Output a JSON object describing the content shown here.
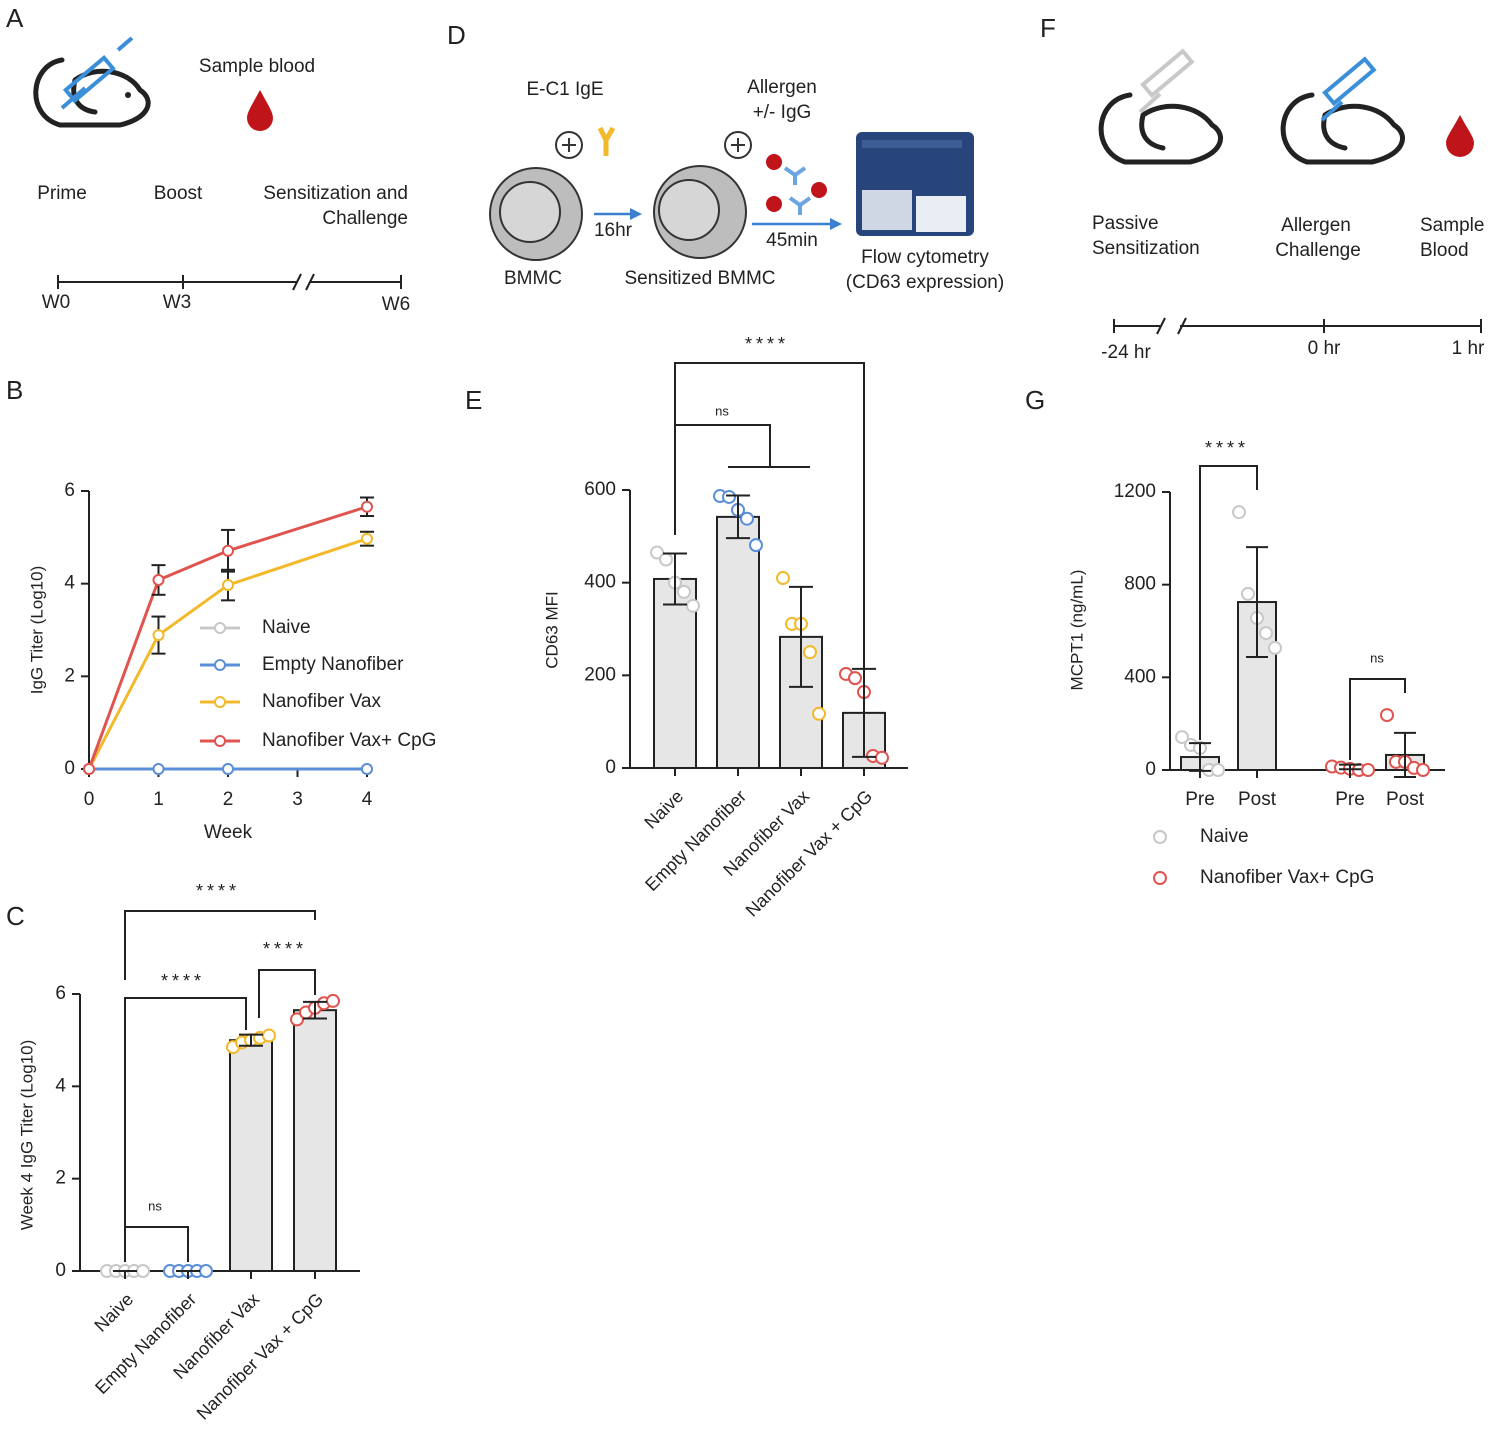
{
  "panels": [
    "A",
    "B",
    "C",
    "D",
    "E",
    "F",
    "G"
  ],
  "diagrams": {
    "A": {
      "labels": [
        "Sample blood",
        "Prime",
        "Boost",
        "Sensitization and",
        "Challenge"
      ],
      "timeline": [
        "W0",
        "W3",
        "W6"
      ]
    },
    "D": {
      "labels": [
        "E-C1 IgE",
        "Allergen",
        "+/- IgG",
        "16hr",
        "45min",
        "BMMC",
        "Sensitized BMMC",
        "Flow cytometry",
        "(CD63 expression)"
      ]
    },
    "F": {
      "labels": [
        "Passive",
        "Sensitization",
        "Allergen",
        "Challenge",
        "Sample",
        "Blood"
      ],
      "timeline": [
        "-24 hr",
        "0 hr",
        "1 hr"
      ]
    }
  },
  "chart_data": [
    {
      "type": "line",
      "xlabel": "Week",
      "ylabel": "IgG Titer (Log10)",
      "x": [
        0,
        1,
        2,
        4
      ],
      "xlim": [
        0,
        4
      ],
      "xticks": [
        0,
        1,
        2,
        3,
        4
      ],
      "ylim": [
        0,
        6
      ],
      "yticks": [
        0,
        2,
        4,
        6
      ],
      "series": [
        {
          "name": "Naive",
          "color": "#c8c8c8",
          "values": [
            0,
            0,
            0,
            0
          ],
          "errors": [
            0,
            0,
            0,
            0
          ]
        },
        {
          "name": "Empty Nanofiber",
          "color": "#5b8ed8",
          "values": [
            0,
            0,
            0,
            0
          ],
          "errors": [
            0,
            0,
            0,
            0
          ]
        },
        {
          "name": "Nanofiber Vax",
          "color": "#f2b92a",
          "values": [
            0,
            2.89,
            3.97,
            4.97
          ],
          "errors": [
            0,
            0.4,
            0.33,
            0.15
          ]
        },
        {
          "name": "Nanofiber Vax+ CpG",
          "color": "#e0544f",
          "values": [
            0,
            4.08,
            4.71,
            5.66
          ],
          "errors": [
            0,
            0.32,
            0.45,
            0.2
          ]
        }
      ]
    },
    {
      "type": "bar",
      "ylabel": "Week 4 IgG Titer (Log10)",
      "categories": [
        "Naive",
        "Empty Nanofiber",
        "Nanofiber Vax",
        "Nanofiber Vax + CpG"
      ],
      "values": [
        0,
        0,
        5.0,
        5.65
      ],
      "errors": [
        0,
        0,
        0.12,
        0.18
      ],
      "points": [
        [
          0,
          0,
          0,
          0,
          0
        ],
        [
          0,
          0,
          0,
          0,
          0
        ],
        [
          4.85,
          4.95,
          5.0,
          5.05,
          5.1
        ],
        [
          5.45,
          5.6,
          5.7,
          5.8,
          5.85
        ]
      ],
      "colors": [
        "#c8c8c8",
        "#5b8ed8",
        "#f2b92a",
        "#e0544f"
      ],
      "bar_color": "#e6e6e6",
      "ylim": [
        0,
        6
      ],
      "yticks": [
        0,
        2,
        4,
        6
      ],
      "annotations": [
        "****",
        "****",
        "****",
        "ns"
      ]
    },
    {
      "type": "bar",
      "ylabel": "CD63 MFI",
      "categories": [
        "Naive",
        "Empty Nanofiber",
        "Nanofiber Vax",
        "Nanofiber Vax + CpG"
      ],
      "values": [
        408,
        542,
        283,
        119
      ],
      "errors": [
        55,
        46,
        108,
        95
      ],
      "points": [
        [
          465,
          450,
          400,
          380,
          350
        ],
        [
          587,
          585,
          557,
          538,
          481
        ],
        [
          410,
          311,
          311,
          250,
          117
        ],
        [
          203,
          194,
          164,
          26,
          22
        ]
      ],
      "colors": [
        "#c8c8c8",
        "#5b8ed8",
        "#f2b92a",
        "#e0544f"
      ],
      "bar_color": "#e6e6e6",
      "ylim": [
        0,
        600
      ],
      "yticks": [
        0,
        200,
        400,
        600
      ],
      "annotations": [
        "****",
        "ns"
      ]
    },
    {
      "type": "grouped_bar",
      "ylabel": "MCPT1 (ng/mL)",
      "categories": [
        "Pre",
        "Post"
      ],
      "series": [
        {
          "name": "Naive",
          "color": "#c8c8c8",
          "values": [
            56,
            725
          ],
          "errors": [
            60,
            237
          ],
          "points": [
            [
              142,
              108,
              95,
              0,
              0
            ],
            [
              1113,
              760,
              656,
              591,
              527
            ]
          ]
        },
        {
          "name": "Nanofiber Vax+ CpG",
          "color": "#e0544f",
          "values": [
            13,
            65
          ],
          "errors": [
            10,
            95
          ],
          "points": [
            [
              15,
              10,
              5,
              0,
              0
            ],
            [
              237,
              35,
              35,
              9,
              0
            ]
          ]
        }
      ],
      "bar_color": "#e6e6e6",
      "ylim": [
        0,
        1200
      ],
      "yticks": [
        0,
        400,
        800,
        1200
      ],
      "annotations": [
        "****",
        "ns"
      ]
    }
  ]
}
